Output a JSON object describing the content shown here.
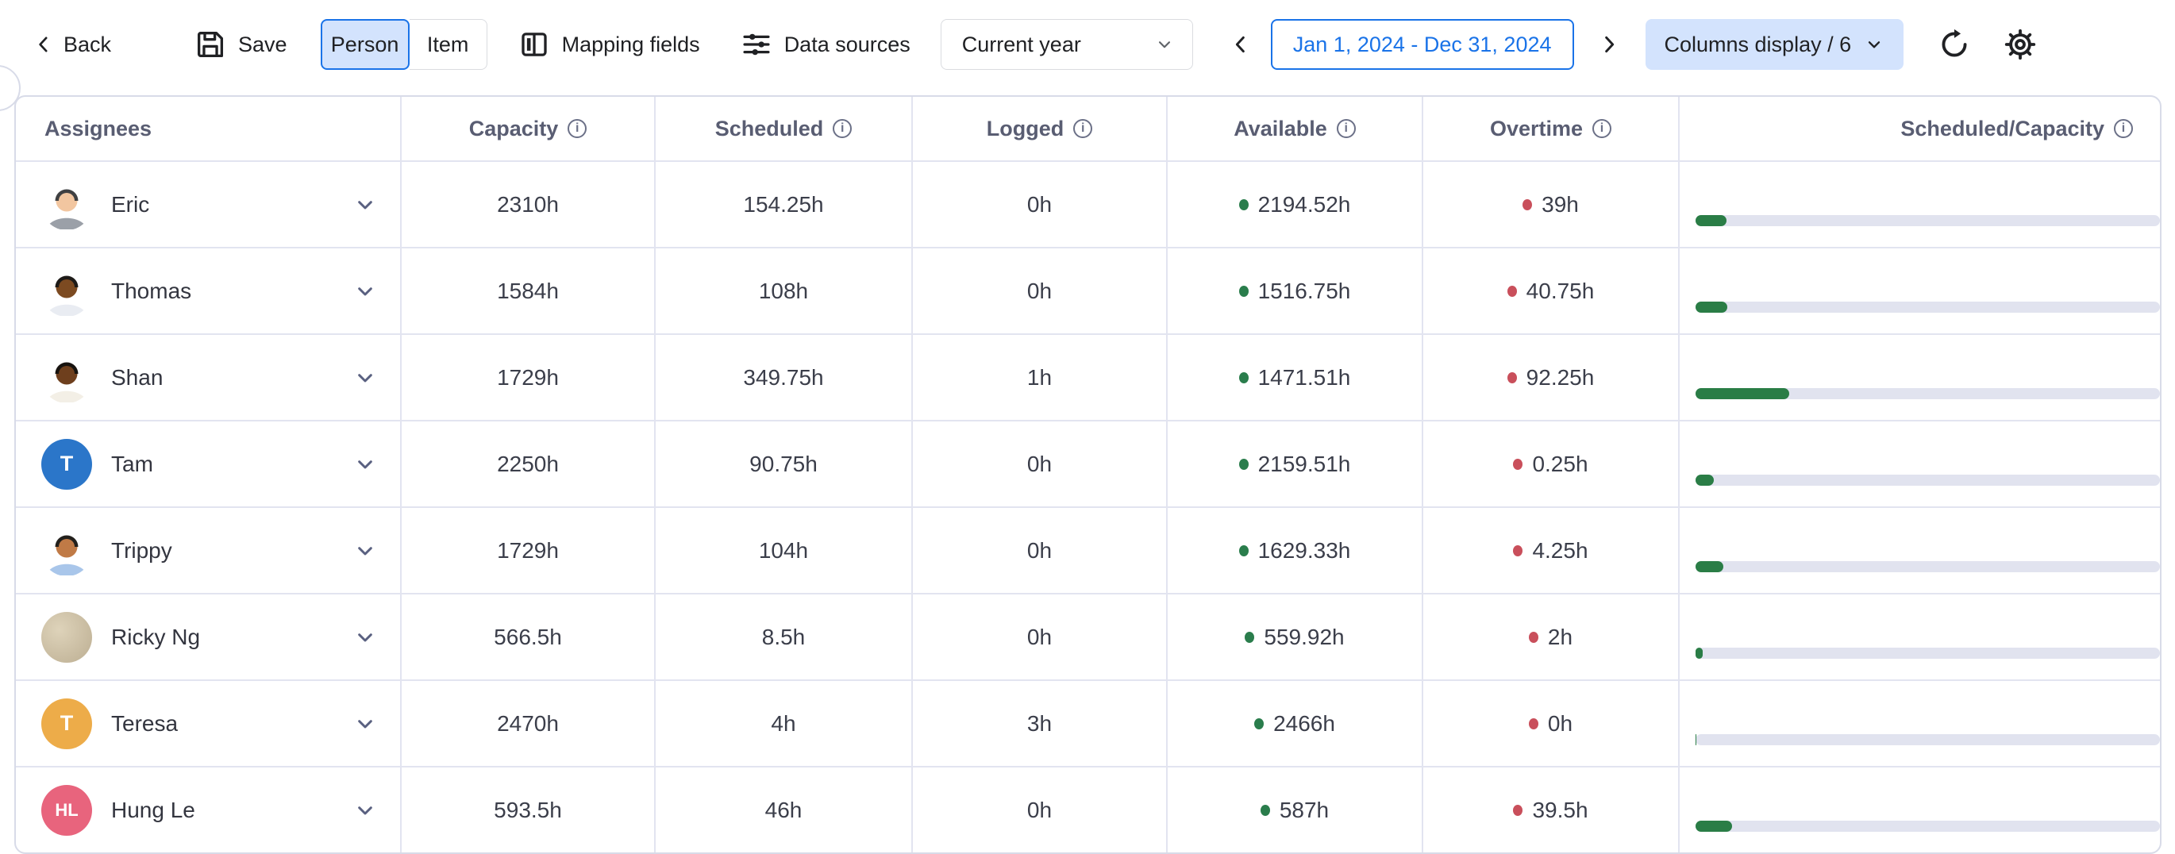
{
  "toolbar": {
    "back_label": "Back",
    "save_label": "Save",
    "view_toggle": {
      "selected": "Person",
      "options": [
        "Person",
        "Item"
      ]
    },
    "mapping_fields_label": "Mapping fields",
    "data_sources_label": "Data sources",
    "period_select": {
      "value": "Current year"
    },
    "date_range": "Jan 1, 2024 - Dec 31, 2024",
    "columns_display_label": "Columns display / 6"
  },
  "icons": {
    "back": "chevron-left",
    "save": "floppy-disk",
    "mapping_fields": "split-rectangle",
    "data_sources": "sliders",
    "period_prev": "chevron-left",
    "period_next": "chevron-right",
    "columns_display": "chevron-down",
    "refresh": "circular-arrow",
    "settings": "gear",
    "column_info": "info-circle",
    "row_expand": "chevron-down",
    "available_marker": "green-dot",
    "overtime_marker": "red-dot"
  },
  "colors": {
    "accent_blue": "#1a73e8",
    "light_blue_fill": "#d3e3fd",
    "available_green": "#2a7d4c",
    "overtime_red": "#c94f5b",
    "bar_fill_green": "#2a7d46",
    "bar_track": "#e1e3ef",
    "table_border": "#d8dbe8",
    "header_text": "#595d72"
  },
  "table": {
    "columns": [
      {
        "label": "Assignees",
        "info": false
      },
      {
        "label": "Capacity",
        "info": true
      },
      {
        "label": "Scheduled",
        "info": true
      },
      {
        "label": "Logged",
        "info": true
      },
      {
        "label": "Available",
        "info": true
      },
      {
        "label": "Overtime",
        "info": true
      },
      {
        "label": "Scheduled/Capacity",
        "info": true
      }
    ],
    "rows": [
      {
        "name": "Eric",
        "capacity": "2310h",
        "scheduled": "154.25h",
        "logged": "0h",
        "available": "2194.52h",
        "overtime": "39h",
        "ratio_pct": 6.7,
        "avatar": {
          "type": "photo",
          "skin": "#f2c6a0",
          "hair": "#3f4042",
          "shirt": "#9ba0a8"
        }
      },
      {
        "name": "Thomas",
        "capacity": "1584h",
        "scheduled": "108h",
        "logged": "0h",
        "available": "1516.75h",
        "overtime": "40.75h",
        "ratio_pct": 6.8,
        "avatar": {
          "type": "photo",
          "skin": "#7c4a21",
          "hair": "#1e1b18",
          "shirt": "#e9ecf2"
        }
      },
      {
        "name": "Shan",
        "capacity": "1729h",
        "scheduled": "349.75h",
        "logged": "1h",
        "available": "1471.51h",
        "overtime": "92.25h",
        "ratio_pct": 20.2,
        "avatar": {
          "type": "photo",
          "skin": "#6e3f1d",
          "hair": "#17130f",
          "shirt": "#f3efe6"
        }
      },
      {
        "name": "Tam",
        "capacity": "2250h",
        "scheduled": "90.75h",
        "logged": "0h",
        "available": "2159.51h",
        "overtime": "0.25h",
        "ratio_pct": 4.0,
        "avatar": {
          "type": "initials",
          "bg": "#2b76c9",
          "text": "T"
        }
      },
      {
        "name": "Trippy",
        "capacity": "1729h",
        "scheduled": "104h",
        "logged": "0h",
        "available": "1629.33h",
        "overtime": "4.25h",
        "ratio_pct": 6.0,
        "avatar": {
          "type": "photo",
          "skin": "#c07a46",
          "hair": "#23201c",
          "shirt": "#a9c6ea"
        }
      },
      {
        "name": "Ricky Ng",
        "capacity": "566.5h",
        "scheduled": "8.5h",
        "logged": "0h",
        "available": "559.92h",
        "overtime": "2h",
        "ratio_pct": 1.5,
        "avatar": {
          "type": "texture",
          "colors": [
            "#ded3ba",
            "#bcae92"
          ]
        }
      },
      {
        "name": "Teresa",
        "capacity": "2470h",
        "scheduled": "4h",
        "logged": "3h",
        "available": "2466h",
        "overtime": "0h",
        "ratio_pct": 0.2,
        "avatar": {
          "type": "initials",
          "bg": "#edac49",
          "text": "T"
        }
      },
      {
        "name": "Hung Le",
        "capacity": "593.5h",
        "scheduled": "46h",
        "logged": "0h",
        "available": "587h",
        "overtime": "39.5h",
        "ratio_pct": 7.8,
        "avatar": {
          "type": "initials",
          "bg": "#e8647d",
          "text": "HL"
        }
      }
    ]
  }
}
